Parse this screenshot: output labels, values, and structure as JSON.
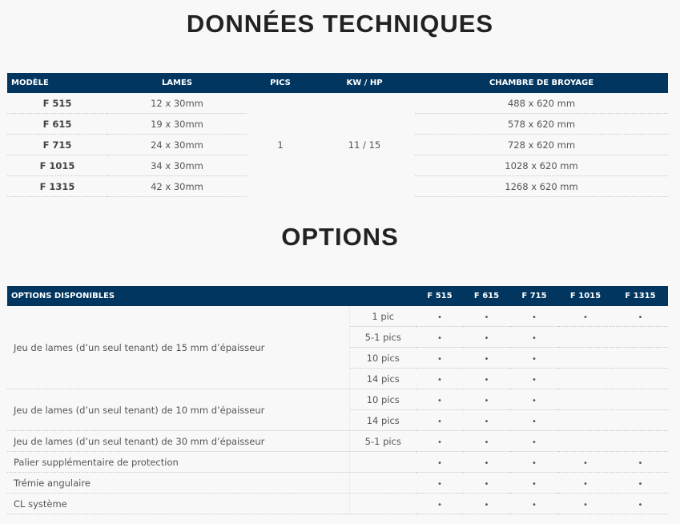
{
  "tech": {
    "title": "DONNÉES TECHNIQUES",
    "headers": [
      "MODÈLE",
      "LAMES",
      "PICS",
      "KW / HP",
      "CHAMBRE DE BROYAGE"
    ],
    "pics": "1",
    "kw_hp": "11 / 15",
    "rows": [
      {
        "model": "F 515",
        "lames": "12 x 30mm",
        "chambre": "488 x 620 mm"
      },
      {
        "model": "F 615",
        "lames": "19 x 30mm",
        "chambre": "578 x 620 mm"
      },
      {
        "model": "F 715",
        "lames": "24 x 30mm",
        "chambre": "728 x 620 mm"
      },
      {
        "model": "F 1015",
        "lames": "34 x 30mm",
        "chambre": "1028 x 620 mm"
      },
      {
        "model": "F 1315",
        "lames": "42 x 30mm",
        "chambre": "1268 x 620 mm"
      }
    ]
  },
  "options": {
    "title": "OPTIONS",
    "headers": [
      "OPTIONS DISPONIBLES",
      "",
      "F 515",
      "F 615",
      "F 715",
      "F 1015",
      "F 1315"
    ],
    "dot": "•",
    "groups": [
      {
        "label": "Jeu de lames (d’un seul tenant) de 15 mm d’épaisseur",
        "rows": [
          {
            "sub": "1 pic",
            "avail": [
              true,
              true,
              true,
              true,
              true
            ]
          },
          {
            "sub": "5-1 pics",
            "avail": [
              true,
              true,
              true,
              false,
              false
            ]
          },
          {
            "sub": "10 pics",
            "avail": [
              true,
              true,
              true,
              false,
              false
            ]
          },
          {
            "sub": "14 pics",
            "avail": [
              true,
              true,
              true,
              false,
              false
            ]
          }
        ]
      },
      {
        "label": "Jeu de lames (d’un seul tenant) de 10 mm d’épaisseur",
        "rows": [
          {
            "sub": "10 pics",
            "avail": [
              true,
              true,
              true,
              false,
              false
            ]
          },
          {
            "sub": "14 pics",
            "avail": [
              true,
              true,
              true,
              false,
              false
            ]
          }
        ]
      },
      {
        "label": "Jeu de lames (d’un seul tenant) de 30 mm d’épaisseur",
        "rows": [
          {
            "sub": "5-1 pics",
            "avail": [
              true,
              true,
              true,
              false,
              false
            ]
          }
        ]
      },
      {
        "label": "Palier supplémentaire de protection",
        "rows": [
          {
            "sub": "",
            "avail": [
              true,
              true,
              true,
              true,
              true
            ]
          }
        ]
      },
      {
        "label": "Trémie angulaire",
        "rows": [
          {
            "sub": "",
            "avail": [
              true,
              true,
              true,
              true,
              true
            ]
          }
        ]
      },
      {
        "label": "CL système",
        "rows": [
          {
            "sub": "",
            "avail": [
              true,
              true,
              true,
              true,
              true
            ]
          }
        ]
      }
    ]
  }
}
